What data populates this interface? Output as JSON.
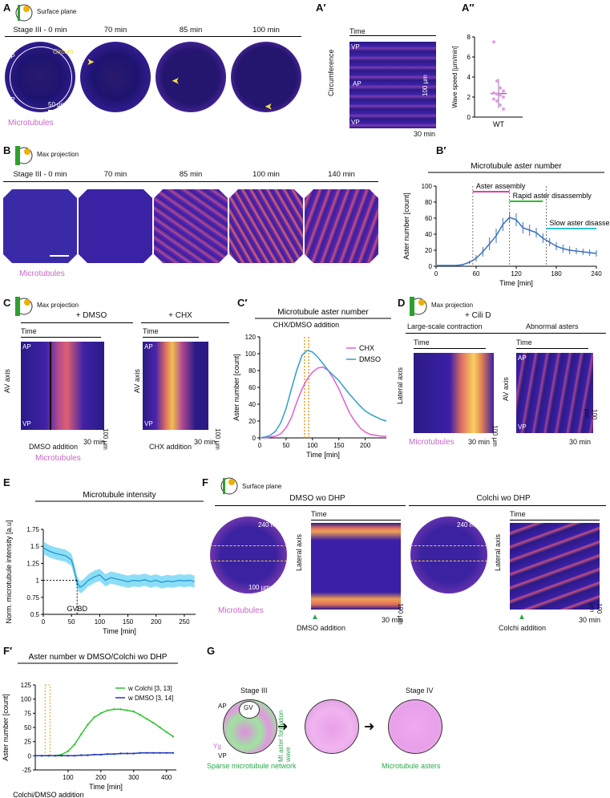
{
  "panels": {
    "A": {
      "letter": "A",
      "icon_label": "Surface plane",
      "times": [
        "Stage III - 0 min",
        "70 min",
        "85 min",
        "100 min"
      ],
      "ap": "AP",
      "vp": "VP",
      "circum": "Circum",
      "scale": "50 µm",
      "caption": "Microtubules"
    },
    "A1": {
      "letter": "A′",
      "time": "Time",
      "circumference": "Circumference",
      "vp_top": "VP",
      "ap": "AP",
      "vp_bottom": "VP",
      "scale_v": "100 µm",
      "scale_h": "30 min"
    },
    "A2": {
      "letter": "A″"
    },
    "B": {
      "letter": "B",
      "icon_label": "Max projection",
      "times": [
        "Stage III - 0 min",
        "70 min",
        "85 min",
        "100 min",
        "140 min"
      ],
      "caption": "Microtubules"
    },
    "B1": {
      "letter": "B′"
    },
    "C": {
      "letter": "C",
      "icon_label": "Max projection",
      "dmso": "+ DMSO",
      "chx": "+ CHX",
      "time": "Time",
      "ap": "AP",
      "vp": "VP",
      "av_axis": "AV axis",
      "scale_v": "100 µm",
      "scale_h": "30 min",
      "dmso_add": "DMSO addition",
      "chx_add": "CHX addition",
      "caption": "Microtubules"
    },
    "C1": {
      "letter": "C′",
      "addition": "CHX/DMSO addition"
    },
    "D": {
      "letter": "D",
      "icon_label": "Max projection",
      "treatment": "+ Cili D",
      "large": "Large-scale contraction",
      "abnormal": "Abnormal asters",
      "time": "Time",
      "lateral": "Lateral axis",
      "av_axis": "AV axis",
      "ap": "AP",
      "vp": "VP",
      "scale_v": "100 µm",
      "scale_h": "30 min",
      "caption": "Microtubules"
    },
    "E": {
      "letter": "E"
    },
    "F": {
      "letter": "F",
      "icon_label": "Surface plane",
      "dmso_title": "DMSO wo DHP",
      "colchi_title": "Colchi wo DHP",
      "min240": "240 min",
      "scale": "100 µm",
      "time": "Time",
      "lateral": "Lateral axis",
      "scale_v": "100 µm",
      "scale_h": "30 min",
      "dmso_add": "DMSO addition",
      "colchi_add": "Colchi addition",
      "caption": "Microtubules"
    },
    "F1": {
      "letter": "F′"
    },
    "G": {
      "letter": "G",
      "stage3": "Stage III",
      "stage4": "Stage IV",
      "ap": "AP",
      "vp": "VP",
      "gv": "GV",
      "yg": "Yg",
      "wave": "Mt aster formation wave",
      "sparse": "Sparse microtubule network",
      "asters": "Microtubule asters"
    }
  },
  "chart_data": [
    {
      "id": "A2",
      "type": "scatter",
      "title": "",
      "ylabel": "Wave speed [µm/min]",
      "categories": [
        "WT"
      ],
      "ylim": [
        0,
        8
      ],
      "yticks": [
        0,
        2,
        4,
        6,
        8
      ],
      "points": [
        7.5,
        3.6,
        2.9,
        2.6,
        2.4,
        2.3,
        2.2,
        2.0,
        1.8,
        1.6,
        1.2,
        0.8
      ],
      "mean": 2.35,
      "sd_low": 0.9,
      "sd_high": 3.8
    },
    {
      "id": "B1",
      "type": "line",
      "title": "Microtubule aster number",
      "xlabel": "Time [min]",
      "ylabel": "Aster number [count]",
      "xlim": [
        0,
        240
      ],
      "ylim": [
        0,
        100
      ],
      "xticks": [
        0,
        60,
        120,
        180,
        240
      ],
      "yticks": [
        0,
        20,
        40,
        60,
        80,
        100
      ],
      "x": [
        0,
        10,
        20,
        30,
        40,
        50,
        60,
        70,
        80,
        90,
        100,
        110,
        120,
        130,
        140,
        150,
        160,
        170,
        180,
        190,
        200,
        210,
        220,
        230,
        240
      ],
      "values": [
        1,
        1,
        1,
        1,
        2,
        5,
        10,
        18,
        28,
        38,
        52,
        61,
        58,
        48,
        45,
        42,
        35,
        30,
        25,
        22,
        20,
        19,
        18,
        17,
        16
      ],
      "err": [
        1,
        1,
        1,
        1,
        1,
        2,
        4,
        6,
        8,
        9,
        8,
        7,
        8,
        7,
        7,
        6,
        6,
        5,
        5,
        5,
        5,
        4,
        4,
        4,
        4
      ],
      "annotations": [
        {
          "text": "Aster assembly",
          "x0": 55,
          "x1": 110,
          "y": 93,
          "color": "#e040a0"
        },
        {
          "text": "Rapid aster disassembly",
          "x0": 110,
          "x1": 160,
          "y": 81,
          "color": "#2dbb2d"
        },
        {
          "text": "Slow aster disassembly",
          "x0": 165,
          "x1": 240,
          "y": 47,
          "color": "#2ec4d9"
        }
      ],
      "vlines": [
        55,
        110,
        165
      ]
    },
    {
      "id": "C1",
      "type": "line",
      "title": "Microtubule aster number",
      "xlabel": "Time [min]",
      "ylabel": "Aster number [count]",
      "xlim": [
        0,
        240
      ],
      "ylim": [
        0,
        120
      ],
      "xticks": [
        0,
        50,
        100,
        150,
        200
      ],
      "yticks": [
        0,
        20,
        40,
        60,
        80,
        100,
        120
      ],
      "x": [
        0,
        10,
        20,
        30,
        40,
        50,
        60,
        70,
        80,
        90,
        100,
        110,
        120,
        130,
        140,
        150,
        160,
        170,
        180,
        190,
        200,
        210,
        220,
        230,
        240
      ],
      "series": [
        {
          "name": "CHX",
          "color": "#e060d0",
          "values": [
            0,
            0,
            1,
            2,
            5,
            12,
            24,
            42,
            58,
            70,
            78,
            83,
            84,
            80,
            70,
            58,
            44,
            30,
            20,
            12,
            7,
            4,
            3,
            2,
            2
          ]
        },
        {
          "name": "DMSO",
          "color": "#2ea0c8",
          "values": [
            0,
            1,
            3,
            8,
            18,
            35,
            58,
            80,
            98,
            104,
            102,
            96,
            88,
            80,
            74,
            68,
            60,
            52,
            45,
            38,
            32,
            28,
            25,
            22,
            20
          ]
        }
      ],
      "vlines": [
        85,
        93
      ]
    },
    {
      "id": "E",
      "type": "line",
      "title": "Microtubule intensity",
      "xlabel": "Time [min]",
      "ylabel": "Norm. microtubule intensity [a.u]",
      "xlim": [
        0,
        270
      ],
      "ylim": [
        0.5,
        1.75
      ],
      "xticks": [
        0,
        50,
        100,
        150,
        200,
        250
      ],
      "yticks": [
        0.5,
        0.75,
        1.0,
        1.25,
        1.5,
        1.75
      ],
      "annotation": "GVBD",
      "gvbd_x": 60,
      "x": [
        0,
        10,
        20,
        30,
        40,
        50,
        55,
        60,
        65,
        70,
        80,
        90,
        100,
        110,
        120,
        130,
        140,
        150,
        160,
        170,
        180,
        190,
        200,
        210,
        220,
        230,
        240,
        250,
        260,
        268
      ],
      "values": [
        1.48,
        1.43,
        1.4,
        1.38,
        1.36,
        1.3,
        1.15,
        0.97,
        0.9,
        0.92,
        1.0,
        1.05,
        1.08,
        1.0,
        1.04,
        1.02,
        1.0,
        0.98,
        1.0,
        0.99,
        1.01,
        0.98,
        1.0,
        0.97,
        0.99,
        0.98,
        1.0,
        0.99,
        1.0,
        0.98
      ],
      "band": 0.09
    },
    {
      "id": "F1",
      "type": "line",
      "title": "Aster number w DMSO/Colchi wo DHP",
      "xlabel": "Time [min]",
      "ylabel": "Aster number [count]",
      "xlim": [
        0,
        430
      ],
      "ylim": [
        -25,
        125
      ],
      "xticks": [
        100,
        200,
        300,
        400
      ],
      "yticks": [
        -25,
        0,
        25,
        50,
        75,
        100,
        125
      ],
      "annotation": "Colchi/DMSO addition",
      "add_x": [
        30,
        45
      ],
      "x": [
        0,
        20,
        40,
        60,
        80,
        100,
        120,
        140,
        160,
        180,
        200,
        220,
        240,
        260,
        280,
        300,
        320,
        340,
        360,
        380,
        400,
        420
      ],
      "series": [
        {
          "name": "w Colchi",
          "n": "[3, 13]",
          "color": "#2ec42e",
          "values": [
            0,
            0,
            0,
            0,
            2,
            8,
            20,
            38,
            55,
            68,
            75,
            80,
            82,
            82,
            80,
            78,
            72,
            65,
            58,
            50,
            42,
            34
          ]
        },
        {
          "name": "w DMSO",
          "n": "[3, 14]",
          "color": "#2038c0",
          "values": [
            0,
            0,
            0,
            0,
            0,
            0,
            0,
            1,
            1,
            2,
            2,
            3,
            3,
            4,
            4,
            4,
            5,
            5,
            5,
            5,
            5,
            5
          ]
        }
      ]
    }
  ]
}
